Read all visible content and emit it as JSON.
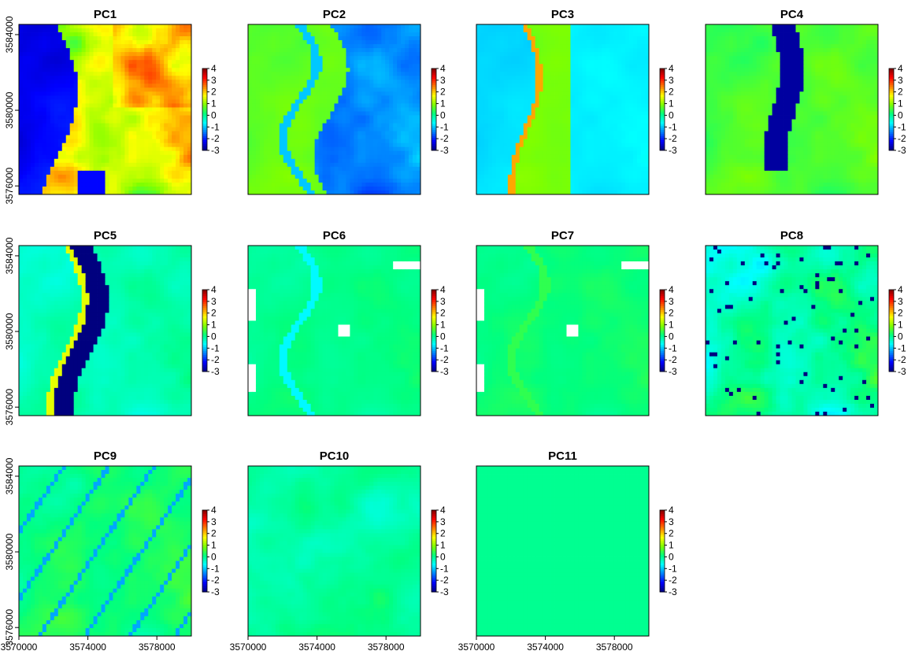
{
  "chart_data": {
    "type": "heatmap",
    "layout": {
      "rows": 3,
      "cols": 4
    },
    "x_ticks": [
      "3570000",
      "3574000",
      "3578000"
    ],
    "y_ticks": [
      "3584000",
      "3580000",
      "3576000"
    ],
    "colorbar": {
      "ticks": [
        "4",
        "3",
        "2",
        "1",
        "0",
        "-1",
        "-2",
        "-3"
      ],
      "range": [
        -3,
        4
      ],
      "colors": [
        "#00007f",
        "#0000ff",
        "#007fff",
        "#00ffff",
        "#00ff7f",
        "#7fff00",
        "#ffff00",
        "#ff7f00",
        "#ff0000",
        "#7f0000"
      ]
    },
    "panels": [
      {
        "title": "PC1",
        "pattern": "pc1"
      },
      {
        "title": "PC2",
        "pattern": "pc2"
      },
      {
        "title": "PC3",
        "pattern": "pc3"
      },
      {
        "title": "PC4",
        "pattern": "pc4"
      },
      {
        "title": "PC5",
        "pattern": "pc5"
      },
      {
        "title": "PC6",
        "pattern": "pc6"
      },
      {
        "title": "PC7",
        "pattern": "pc7"
      },
      {
        "title": "PC8",
        "pattern": "pc8"
      },
      {
        "title": "PC9",
        "pattern": "pc9"
      },
      {
        "title": "PC10",
        "pattern": "pc10"
      },
      {
        "title": "PC11",
        "pattern": "flat"
      }
    ]
  }
}
